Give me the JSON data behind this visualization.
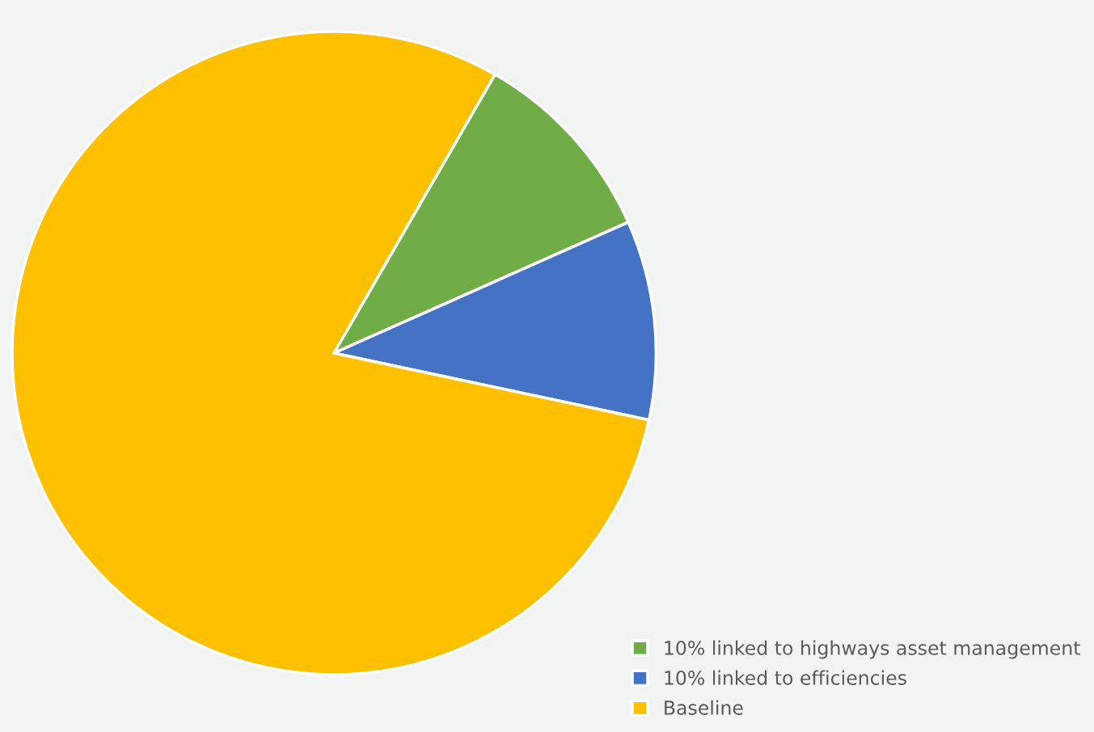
{
  "chart_data": {
    "type": "pie",
    "categories": [
      "10% linked to highways asset management",
      "10% linked to efficiencies",
      "Baseline"
    ],
    "values": [
      10,
      10,
      80
    ],
    "colors": [
      "#70ad47",
      "#4472c4",
      "#ffc000"
    ],
    "legend": "bottom right"
  }
}
